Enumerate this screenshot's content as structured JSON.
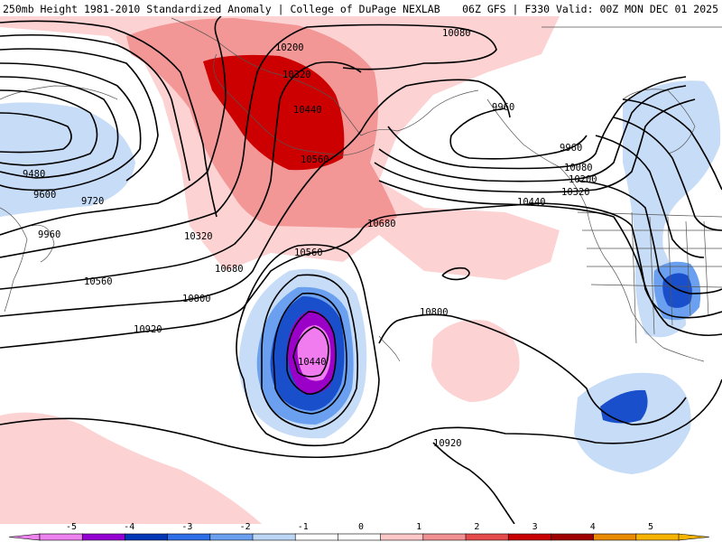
{
  "header": {
    "left": "250mb Height 1981-2010 Standardized Anomaly | College of DuPage NEXLAB",
    "right": "06Z GFS | F330 Valid: 00Z MON DEC 01 2025"
  },
  "contour_labels": [
    "10080",
    "10200",
    "10320",
    "10440",
    "10560",
    "9480",
    "9600",
    "9720",
    "9960",
    "10320",
    "10560",
    "10680",
    "10800",
    "10920",
    "10560",
    "10440",
    "10680",
    "10800",
    "10920",
    "9960",
    "9960",
    "10080",
    "10200",
    "10320",
    "10440"
  ],
  "colorbar": {
    "ticks": [
      "-5",
      "-4",
      "-3",
      "-2",
      "-1",
      "0",
      "1",
      "2",
      "3",
      "4",
      "5"
    ],
    "colors": [
      "#ee82ee",
      "#9400d3",
      "#0038b8",
      "#2e6ee6",
      "#6aa0ef",
      "#bcd6f5",
      "#ffffff",
      "#ffffff",
      "#ffc8c8",
      "#f29191",
      "#e64b4b",
      "#c80000",
      "#a00000",
      "#e98a00",
      "#f6b400"
    ]
  }
}
